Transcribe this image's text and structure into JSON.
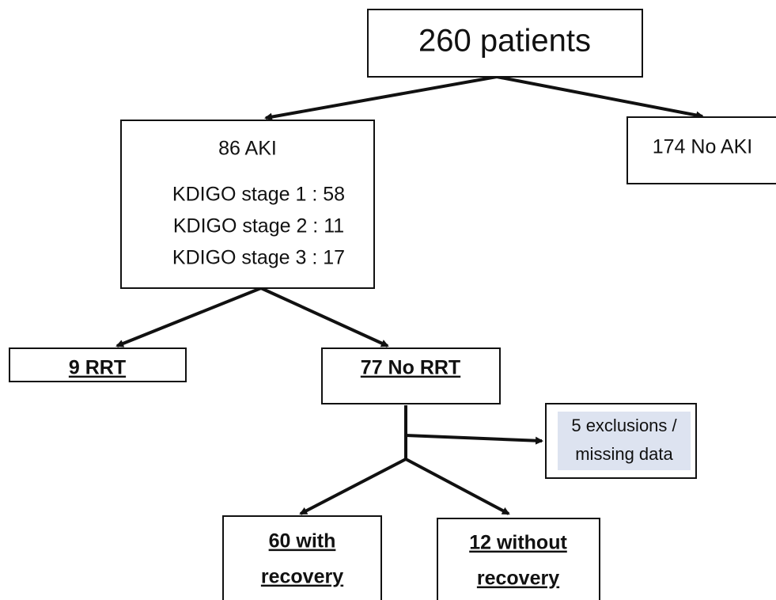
{
  "nodes": [
    {
      "lines": [
        "260 patients"
      ]
    },
    {
      "lines": [
        "86 AKI",
        "KDIGO stage 1 : 58",
        "KDIGO stage 2 : 11",
        "KDIGO stage 3 : 17"
      ]
    },
    {
      "lines": [
        "174 No AKI"
      ]
    },
    {
      "lines": [
        "9 RRT"
      ]
    },
    {
      "lines": [
        "77 No RRT"
      ]
    },
    {
      "lines": [
        "5 exclusions /",
        "missing data"
      ]
    },
    {
      "lines": [
        "60 with",
        "recovery"
      ]
    },
    {
      "lines": [
        "12 without",
        "recovery"
      ]
    }
  ]
}
